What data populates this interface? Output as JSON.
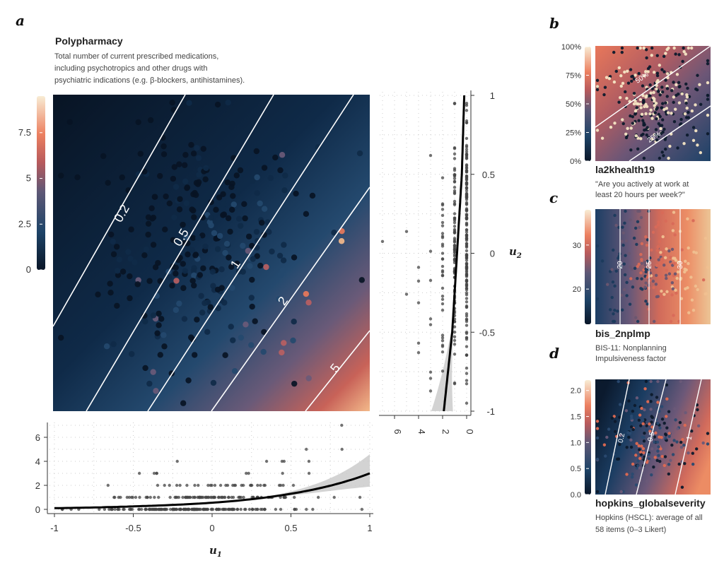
{
  "chart_data": [
    {
      "panel": "a",
      "type": "heatmap",
      "title": "Polypharmacy",
      "subtitle": [
        "Total number of current prescribed medications,",
        "including psychotropics and other drugs with",
        "psychiatric indications (e.g. β-blockers, antihistamines)."
      ],
      "xlabel": "u",
      "xlabel_sub": "1",
      "ylabel": "u",
      "ylabel_sub": "2",
      "xlim": [
        -1,
        1
      ],
      "ylim": [
        -1,
        1
      ],
      "colorbar": {
        "range": [
          0,
          9.5
        ],
        "ticks": [
          "0",
          "2.5",
          "5",
          "7.5"
        ],
        "tick_values": [
          0,
          2.5,
          5,
          7.5
        ]
      },
      "contours": [
        {
          "label": "0.2",
          "value": 0.2
        },
        {
          "label": "0.5",
          "value": 0.5
        },
        {
          "label": "1",
          "value": 1
        },
        {
          "label": "2",
          "value": 2
        },
        {
          "label": "5",
          "value": 5
        }
      ],
      "bottom_marginal": {
        "type": "scatter+line",
        "xlim": [
          -1,
          1
        ],
        "ylim": [
          0,
          7
        ],
        "xticks": [
          "-1",
          "-0.5",
          "0",
          "0.5",
          "1"
        ],
        "xtick_values": [
          -1,
          -0.5,
          0,
          0.5,
          1
        ],
        "yticks": [
          "0",
          "2",
          "4",
          "6"
        ],
        "ytick_values": [
          0,
          2,
          4,
          6
        ],
        "fit_line": {
          "x": [
            -1,
            -0.5,
            0,
            0.5,
            1
          ],
          "y": [
            0.1,
            0.25,
            0.55,
            1.3,
            3.0
          ]
        },
        "ci_upper_at_1": 4.6,
        "ci_lower_at_1": 1.9
      },
      "right_marginal": {
        "type": "scatter+line",
        "ylim": [
          -1,
          1
        ],
        "xlim": [
          7,
          0
        ],
        "yticks": [
          "1",
          "0.5",
          "0",
          "-0.5",
          "-1"
        ],
        "ytick_values": [
          1,
          0.5,
          0,
          -0.5,
          -1
        ],
        "xticks": [
          "6",
          "4",
          "2",
          "0"
        ],
        "xtick_values": [
          6,
          4,
          2,
          0
        ],
        "fit_line": {
          "u2": [
            1,
            0.5,
            0,
            -0.5,
            -1
          ],
          "count": [
            0.2,
            0.4,
            0.8,
            1.2,
            1.9
          ]
        }
      }
    },
    {
      "panel": "b",
      "type": "heatmap",
      "title": "la2khealth19",
      "subtitle": [
        "\"Are you actively at work at",
        "least 20 hours per week?\""
      ],
      "colorbar": {
        "ticks": [
          "0%",
          "25%",
          "50%",
          "75%",
          "100%"
        ],
        "tick_values": [
          0,
          25,
          50,
          75,
          100
        ]
      },
      "contours": [
        {
          "label": "50%",
          "value": 50
        },
        {
          "label": "25%",
          "value": 25
        }
      ]
    },
    {
      "panel": "c",
      "type": "heatmap",
      "title": "bis_2nplmp",
      "subtitle": [
        "BIS-11: Nonplanning",
        "Impulsiveness factor"
      ],
      "colorbar": {
        "ticks": [
          "20",
          "30"
        ],
        "tick_values": [
          20,
          30
        ],
        "range": [
          12,
          38
        ]
      },
      "contours": [
        {
          "label": "20",
          "value": 20
        },
        {
          "label": "25",
          "value": 25
        },
        {
          "label": "30",
          "value": 30
        }
      ]
    },
    {
      "panel": "d",
      "type": "heatmap",
      "title": "hopkins_globalseverity",
      "subtitle": [
        "Hopkins (HSCL): average of all",
        "58 items (0–3 Likert)"
      ],
      "colorbar": {
        "ticks": [
          "0.0",
          "0.5",
          "1.0",
          "1.5",
          "2.0"
        ],
        "tick_values": [
          0,
          0.5,
          1.0,
          1.5,
          2.0
        ],
        "range": [
          0,
          2.2
        ]
      },
      "contours": [
        {
          "label": "0.2",
          "value": 0.2
        },
        {
          "label": "0.5",
          "value": 0.5
        },
        {
          "label": "1",
          "value": 1
        }
      ]
    }
  ],
  "palette": {
    "c0": "#0a1628",
    "c1": "#1b3b5e",
    "c2": "#5a5a78",
    "c3": "#b05a5e",
    "c4": "#e8765a",
    "c5": "#f0c89a",
    "c6": "#f8ecd4"
  },
  "panel_letters": {
    "a": "a",
    "b": "b",
    "c": "c",
    "d": "d"
  }
}
